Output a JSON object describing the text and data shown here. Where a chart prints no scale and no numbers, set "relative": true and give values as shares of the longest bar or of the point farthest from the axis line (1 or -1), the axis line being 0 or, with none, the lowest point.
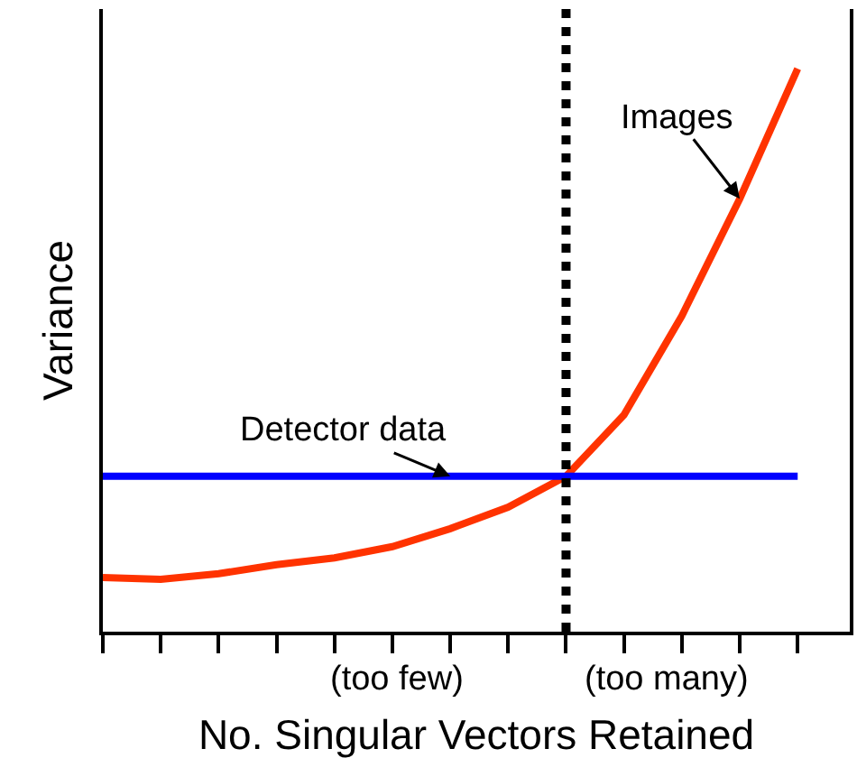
{
  "chart_data": {
    "type": "line",
    "relative": true,
    "xlabel": "No. Singular Vectors Retained",
    "ylabel": "Variance",
    "categories": [
      null,
      null,
      null,
      null,
      null,
      null,
      null,
      null,
      null,
      null,
      null,
      null,
      null
    ],
    "legend": false,
    "marker": "none",
    "line_style": "solid",
    "series": [
      {
        "name": "Images",
        "color": "#ff3300",
        "values": [
          0.096,
          0.093,
          0.103,
          0.119,
          0.131,
          0.151,
          0.183,
          0.221,
          0.276,
          0.385,
          0.561,
          0.769,
          1.0
        ]
      },
      {
        "name": "Detector data",
        "color": "#0000ff",
        "values": [
          0.276,
          0.276,
          0.276,
          0.276,
          0.276,
          0.276,
          0.276,
          0.276,
          0.276,
          0.276,
          0.276,
          0.276,
          0.276
        ]
      }
    ],
    "annotations": [
      "(too few)",
      "(too many)"
    ]
  }
}
